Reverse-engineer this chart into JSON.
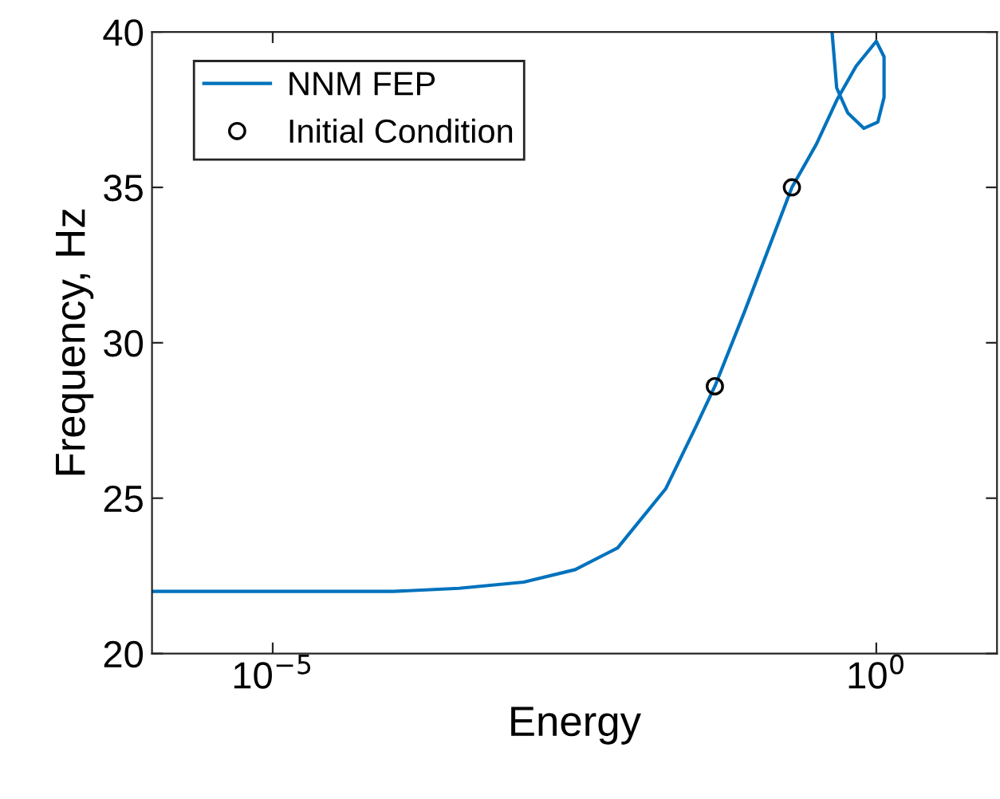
{
  "chart_data": {
    "type": "line",
    "xlabel": "Energy",
    "ylabel": "Frequency, Hz",
    "log": "x",
    "grid": false,
    "legend": "top left",
    "xlim": [
      1e-06,
      10
    ],
    "xticks": [
      {
        "value": 1e-05,
        "label": "10$^{−5}$"
      },
      {
        "value": 1,
        "label": "10$^{0}$"
      }
    ],
    "ylim": [
      20,
      40
    ],
    "yticks": [
      20,
      25,
      30,
      35,
      40
    ],
    "series": [
      {
        "name": "NNM FEP",
        "color": "#0072bd",
        "marker": "none",
        "line_style": "solid",
        "x": [
          1e-06,
          1e-05,
          0.0001,
          0.00035,
          0.0012,
          0.0032,
          0.0072,
          0.018,
          0.032,
          0.046,
          0.081,
          0.2,
          0.32,
          0.47,
          0.68,
          1.0,
          1.16,
          1.16,
          1.03,
          0.79,
          0.58,
          0.47,
          0.43
        ],
        "values": [
          22.0,
          22.0,
          22.0,
          22.1,
          22.3,
          22.7,
          23.4,
          25.3,
          27.3,
          28.6,
          31.0,
          35.0,
          36.4,
          37.8,
          38.9,
          39.7,
          39.2,
          37.9,
          37.1,
          36.9,
          37.4,
          38.2,
          40.0
        ]
      },
      {
        "name": "Initial Condition",
        "type": "scatter",
        "color": "#000000",
        "marker": "circle",
        "x": [
          0.046,
          0.2
        ],
        "values": [
          28.6,
          35.0
        ]
      }
    ]
  }
}
